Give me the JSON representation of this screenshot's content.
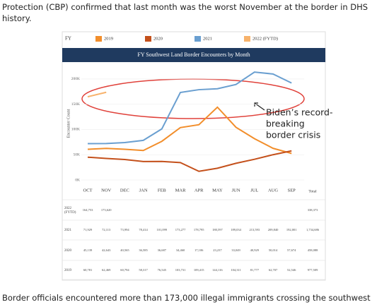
{
  "text_top": [
    "Protection (CBP) confirmed that last month was the worst November at the border in DHS",
    "history."
  ],
  "chart_data": {
    "type": "line",
    "legend_label": "FY",
    "title": "FY Southwest Land Border Encounters by Month",
    "y_label": "Encounter Count",
    "categories": [
      "OCT",
      "NOV",
      "DEC",
      "JAN",
      "FEB",
      "MAR",
      "APR",
      "MAY",
      "JUN",
      "JUL",
      "AUG",
      "SEP"
    ],
    "total_label": "Total",
    "series": [
      {
        "name": "2019",
        "color": "#f28e2b",
        "values": [
          60781,
          62469,
          60794,
          58317,
          76545,
          103731,
          109415,
          144116,
          104311,
          81777,
          62707,
          52546
        ]
      },
      {
        "name": "2020",
        "color": "#c4501b",
        "values": [
          45139,
          42643,
          40565,
          36585,
          36687,
          34460,
          17106,
          23237,
          33049,
          40929,
          50014,
          57674
        ]
      },
      {
        "name": "2021",
        "color": "#6a9fd0",
        "values": [
          71929,
          72113,
          73994,
          78414,
          101099,
          173277,
          178795,
          180597,
          189034,
          213593,
          209840,
          192001
        ]
      },
      {
        "name": "2022 (FYTD)",
        "color": "#f7b26b",
        "values": [
          164753,
          173620,
          null,
          null,
          null,
          null,
          null,
          null,
          null,
          null,
          null,
          null
        ]
      }
    ],
    "ylim": [
      0,
      225000
    ],
    "yticks": [
      {
        "value": 0,
        "label": "0K"
      },
      {
        "value": 50000,
        "label": "50K"
      },
      {
        "value": 100000,
        "label": "100K"
      },
      {
        "value": 150000,
        "label": "150K"
      },
      {
        "value": 200000,
        "label": "200K"
      }
    ],
    "annotation": [
      "Biden’s record-",
      "breaking",
      "border crisis"
    ]
  },
  "table": {
    "rows": [
      {
        "label": [
          "2022",
          "(FYTD)"
        ],
        "cells": [
          "164,753",
          "173,620",
          null,
          null,
          null,
          null,
          null,
          null,
          null,
          null,
          null,
          null
        ],
        "total": "338,373"
      },
      {
        "label": [
          "2021"
        ],
        "cells": [
          "71,929",
          "72,113",
          "73,994",
          "78,414",
          "101,099",
          "173,277",
          "178,795",
          "180,597",
          "189,034",
          "213,593",
          "209,840",
          "192,001"
        ],
        "total": "1,734,686"
      },
      {
        "label": [
          "2020"
        ],
        "cells": [
          "45,139",
          "42,643",
          "40,565",
          "36,585",
          "36,687",
          "34,460",
          "17,106",
          "23,237",
          "33,049",
          "40,929",
          "50,014",
          "57,674"
        ],
        "total": "458,088"
      },
      {
        "label": [
          "2019"
        ],
        "cells": [
          "60,781",
          "62,469",
          "60,794",
          "58,317",
          "76,545",
          "103,731",
          "109,415",
          "144,116",
          "104,311",
          "81,777",
          "62,707",
          "52,546"
        ],
        "total": "977,509"
      }
    ]
  },
  "text_bottom": "Border officials encountered more than 173,000 illegal immigrants crossing the southwest"
}
